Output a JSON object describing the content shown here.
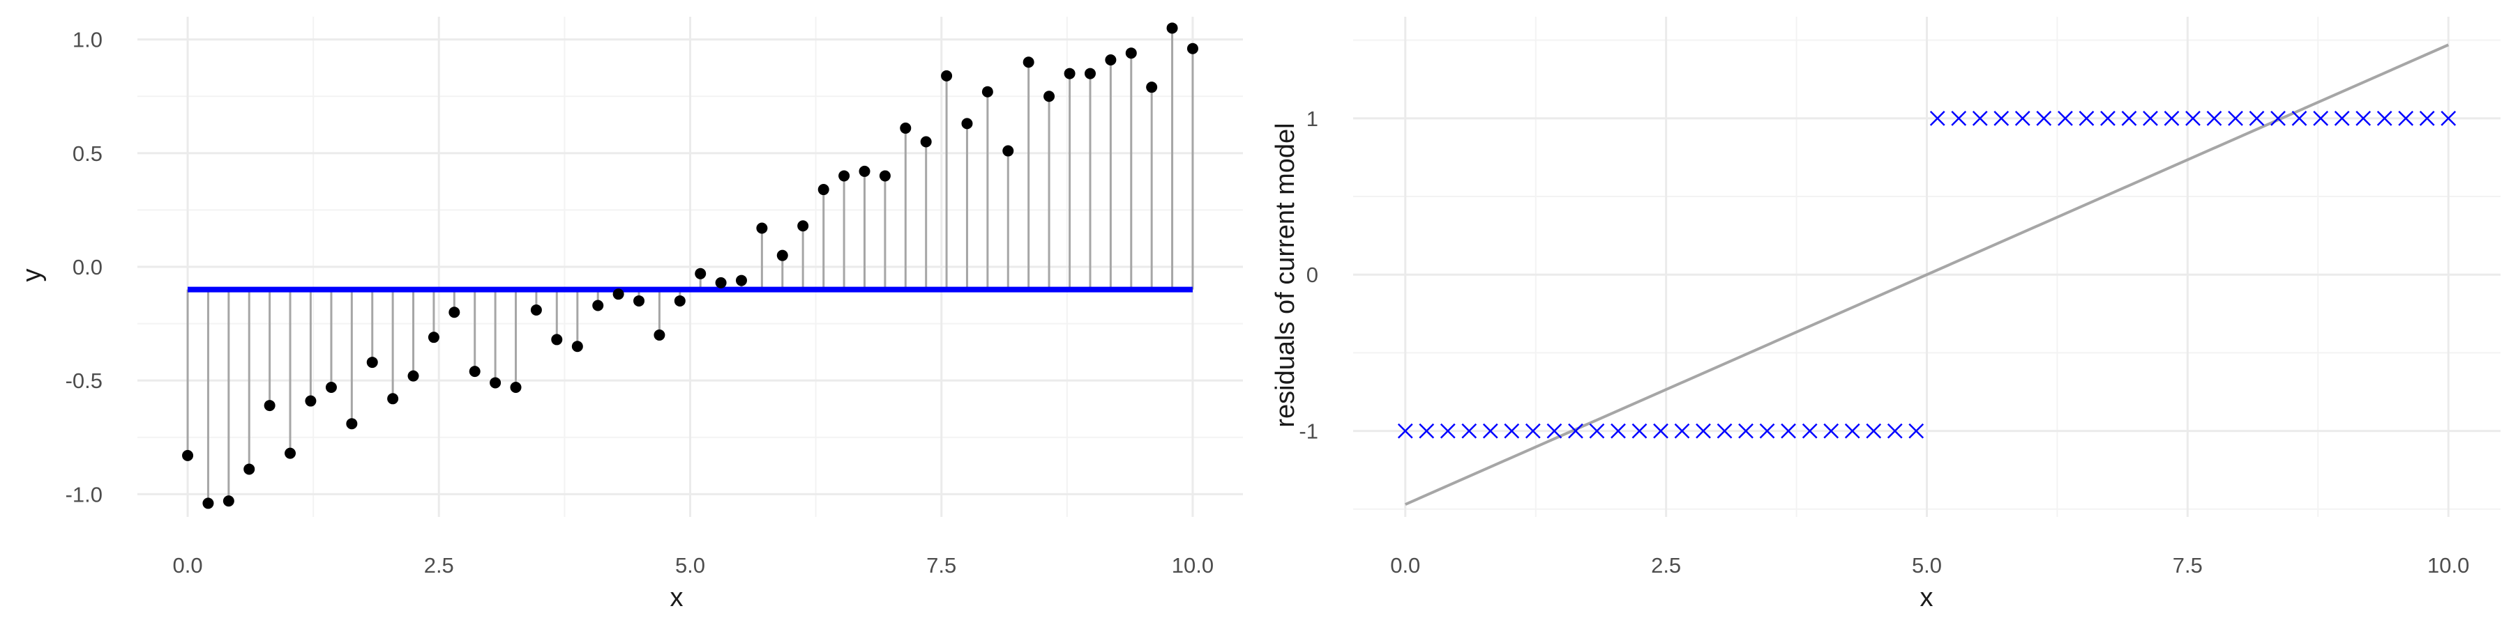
{
  "colors": {
    "fit_line": "#0000ff",
    "residual_marker": "#0000ff",
    "points": "#000000",
    "stems": "#a6a6a6",
    "trend_line": "#a6a6a6",
    "grid_major": "#ebebeb",
    "grid_minor": "#f3f3f3"
  },
  "chart_data": [
    {
      "type": "scatter",
      "xlabel": "x",
      "ylabel": "y",
      "xlim": [
        -0.5,
        10.5
      ],
      "ylim": [
        -1.1,
        1.1
      ],
      "xticks": [
        0,
        2.5,
        5,
        7.5,
        10
      ],
      "xtick_labels": [
        "0.0",
        "2.5",
        "5.0",
        "7.5",
        "10.0"
      ],
      "yticks": [
        -1,
        -0.5,
        0,
        0.5,
        1
      ],
      "ytick_labels": [
        "-1.0",
        "-0.5",
        "0.0",
        "0.5",
        "1.0"
      ],
      "grid": true,
      "fit_level": -0.1,
      "x": [
        0,
        0.204,
        0.408,
        0.612,
        0.816,
        1.02,
        1.224,
        1.429,
        1.633,
        1.837,
        2.041,
        2.245,
        2.449,
        2.653,
        2.857,
        3.061,
        3.265,
        3.469,
        3.673,
        3.878,
        4.082,
        4.286,
        4.49,
        4.694,
        4.898,
        5.102,
        5.306,
        5.51,
        5.714,
        5.918,
        6.122,
        6.327,
        6.531,
        6.735,
        6.939,
        7.143,
        7.347,
        7.551,
        7.755,
        7.959,
        8.163,
        8.367,
        8.571,
        8.776,
        8.98,
        9.184,
        9.388,
        9.592,
        9.796,
        10
      ],
      "y": [
        -0.83,
        -1.04,
        -1.03,
        -0.89,
        -0.61,
        -0.82,
        -0.59,
        -0.53,
        -0.69,
        -0.42,
        -0.58,
        -0.48,
        -0.31,
        -0.2,
        -0.46,
        -0.51,
        -0.53,
        -0.19,
        -0.32,
        -0.35,
        -0.17,
        -0.12,
        -0.15,
        -0.3,
        -0.15,
        -0.03,
        -0.07,
        -0.06,
        0.17,
        0.05,
        0.18,
        0.34,
        0.4,
        0.42,
        0.4,
        0.61,
        0.55,
        0.84,
        0.63,
        0.77,
        0.51,
        0.9,
        0.75,
        0.85,
        0.85,
        0.91,
        0.94,
        0.79,
        1.05,
        0.96
      ]
    },
    {
      "type": "scatter",
      "xlabel": "x",
      "ylabel": "residuals of current model",
      "xlim": [
        -0.5,
        10.5
      ],
      "ylim": [
        -1.55,
        1.65
      ],
      "xticks": [
        0,
        2.5,
        5,
        7.5,
        10
      ],
      "xtick_labels": [
        "0.0",
        "2.5",
        "5.0",
        "7.5",
        "10.0"
      ],
      "yticks": [
        -1,
        0,
        1
      ],
      "ytick_labels": [
        "-1",
        "0",
        "1"
      ],
      "grid": true,
      "marker": "x",
      "x": [
        0,
        0.204,
        0.408,
        0.612,
        0.816,
        1.02,
        1.224,
        1.429,
        1.633,
        1.837,
        2.041,
        2.245,
        2.449,
        2.653,
        2.857,
        3.061,
        3.265,
        3.469,
        3.673,
        3.878,
        4.082,
        4.286,
        4.49,
        4.694,
        4.898,
        5.102,
        5.306,
        5.51,
        5.714,
        5.918,
        6.122,
        6.327,
        6.531,
        6.735,
        6.939,
        7.143,
        7.347,
        7.551,
        7.755,
        7.959,
        8.163,
        8.367,
        8.571,
        8.776,
        8.98,
        9.184,
        9.388,
        9.592,
        9.796,
        10
      ],
      "y": [
        -1,
        -1,
        -1,
        -1,
        -1,
        -1,
        -1,
        -1,
        -1,
        -1,
        -1,
        -1,
        -1,
        -1,
        -1,
        -1,
        -1,
        -1,
        -1,
        -1,
        -1,
        -1,
        -1,
        -1,
        -1,
        1,
        1,
        1,
        1,
        1,
        1,
        1,
        1,
        1,
        1,
        1,
        1,
        1,
        1,
        1,
        1,
        1,
        1,
        1,
        1,
        1,
        1,
        1,
        1,
        1
      ],
      "trend_line": {
        "x": [
          0,
          10
        ],
        "y": [
          -1.47,
          1.47
        ]
      }
    }
  ]
}
